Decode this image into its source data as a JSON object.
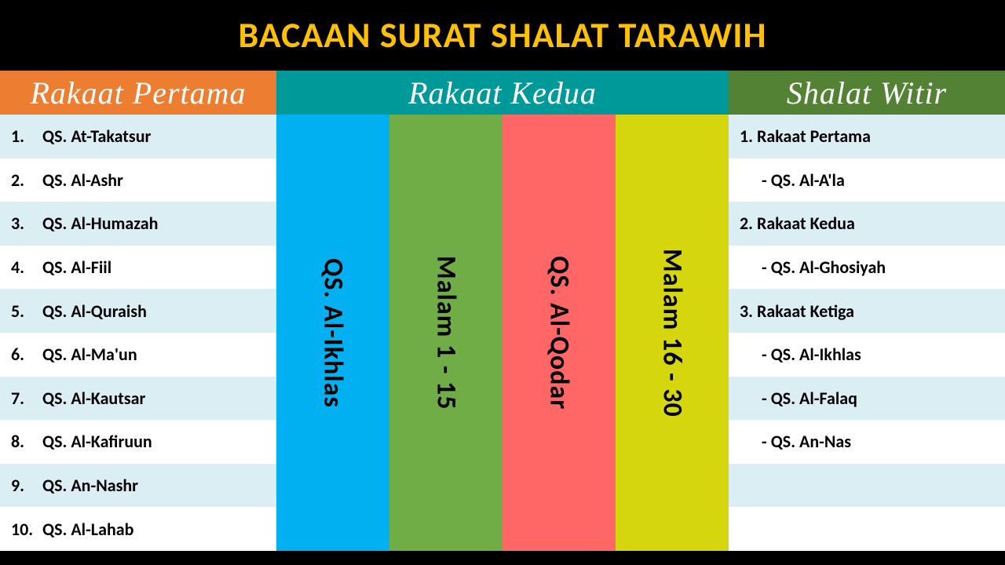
{
  "title": "BACAAN SURAT SHALAT TARAWIH",
  "title_color": "#ffc000",
  "background": "#000000",
  "headers": {
    "left": {
      "label": "Rakaat Pertama",
      "bg": "#ed7d31"
    },
    "mid": {
      "label": "Rakaat Kedua",
      "bg": "#009999"
    },
    "right": {
      "label": "Shalat Witir",
      "bg": "#548235"
    }
  },
  "row_colors": {
    "alt": "#dbeef4",
    "plain": "#ffffff"
  },
  "left_list": [
    {
      "num": "1.",
      "txt": "QS. At-Takatsur"
    },
    {
      "num": "2.",
      "txt": "QS. Al-Ashr"
    },
    {
      "num": "3.",
      "txt": "QS. Al-Humazah"
    },
    {
      "num": "4.",
      "txt": "QS. Al-Fiil"
    },
    {
      "num": "5.",
      "txt": "QS. Al-Quraish"
    },
    {
      "num": "6.",
      "txt": "QS. Al-Ma'un"
    },
    {
      "num": "7.",
      "txt": "QS. Al-Kautsar"
    },
    {
      "num": "8.",
      "txt": "QS. Al-Kafiruun"
    },
    {
      "num": "9.",
      "txt": "QS. An-Nashr"
    },
    {
      "num": "10.",
      "txt": "QS. Al-Lahab"
    }
  ],
  "mid_strips": [
    {
      "label": "QS. Al-Ikhlas",
      "bg": "#00b0f0"
    },
    {
      "label": "Malam 1 - 15",
      "bg": "#70ad47"
    },
    {
      "label": "QS. Al-Qodar",
      "bg": "#ff6666"
    },
    {
      "label": "Malam 16 - 30",
      "bg": "#d6d60f"
    }
  ],
  "right_list": [
    {
      "txt": "1. Rakaat Pertama",
      "indent": false
    },
    {
      "txt": "- QS. Al-A'la",
      "indent": true
    },
    {
      "txt": "2. Rakaat Kedua",
      "indent": false
    },
    {
      "txt": "- QS. Al-Ghosiyah",
      "indent": true
    },
    {
      "txt": "3. Rakaat Ketiga",
      "indent": false
    },
    {
      "txt": "- QS. Al-Ikhlas",
      "indent": true
    },
    {
      "txt": "- QS. Al-Falaq",
      "indent": true
    },
    {
      "txt": "- QS. An-Nas",
      "indent": true
    },
    {
      "txt": "",
      "indent": false
    },
    {
      "txt": "",
      "indent": false
    }
  ],
  "fonts": {
    "title_size": 46,
    "header_family": "Brush Script MT",
    "header_size": 40,
    "row_size": 22,
    "strip_size": 34
  }
}
